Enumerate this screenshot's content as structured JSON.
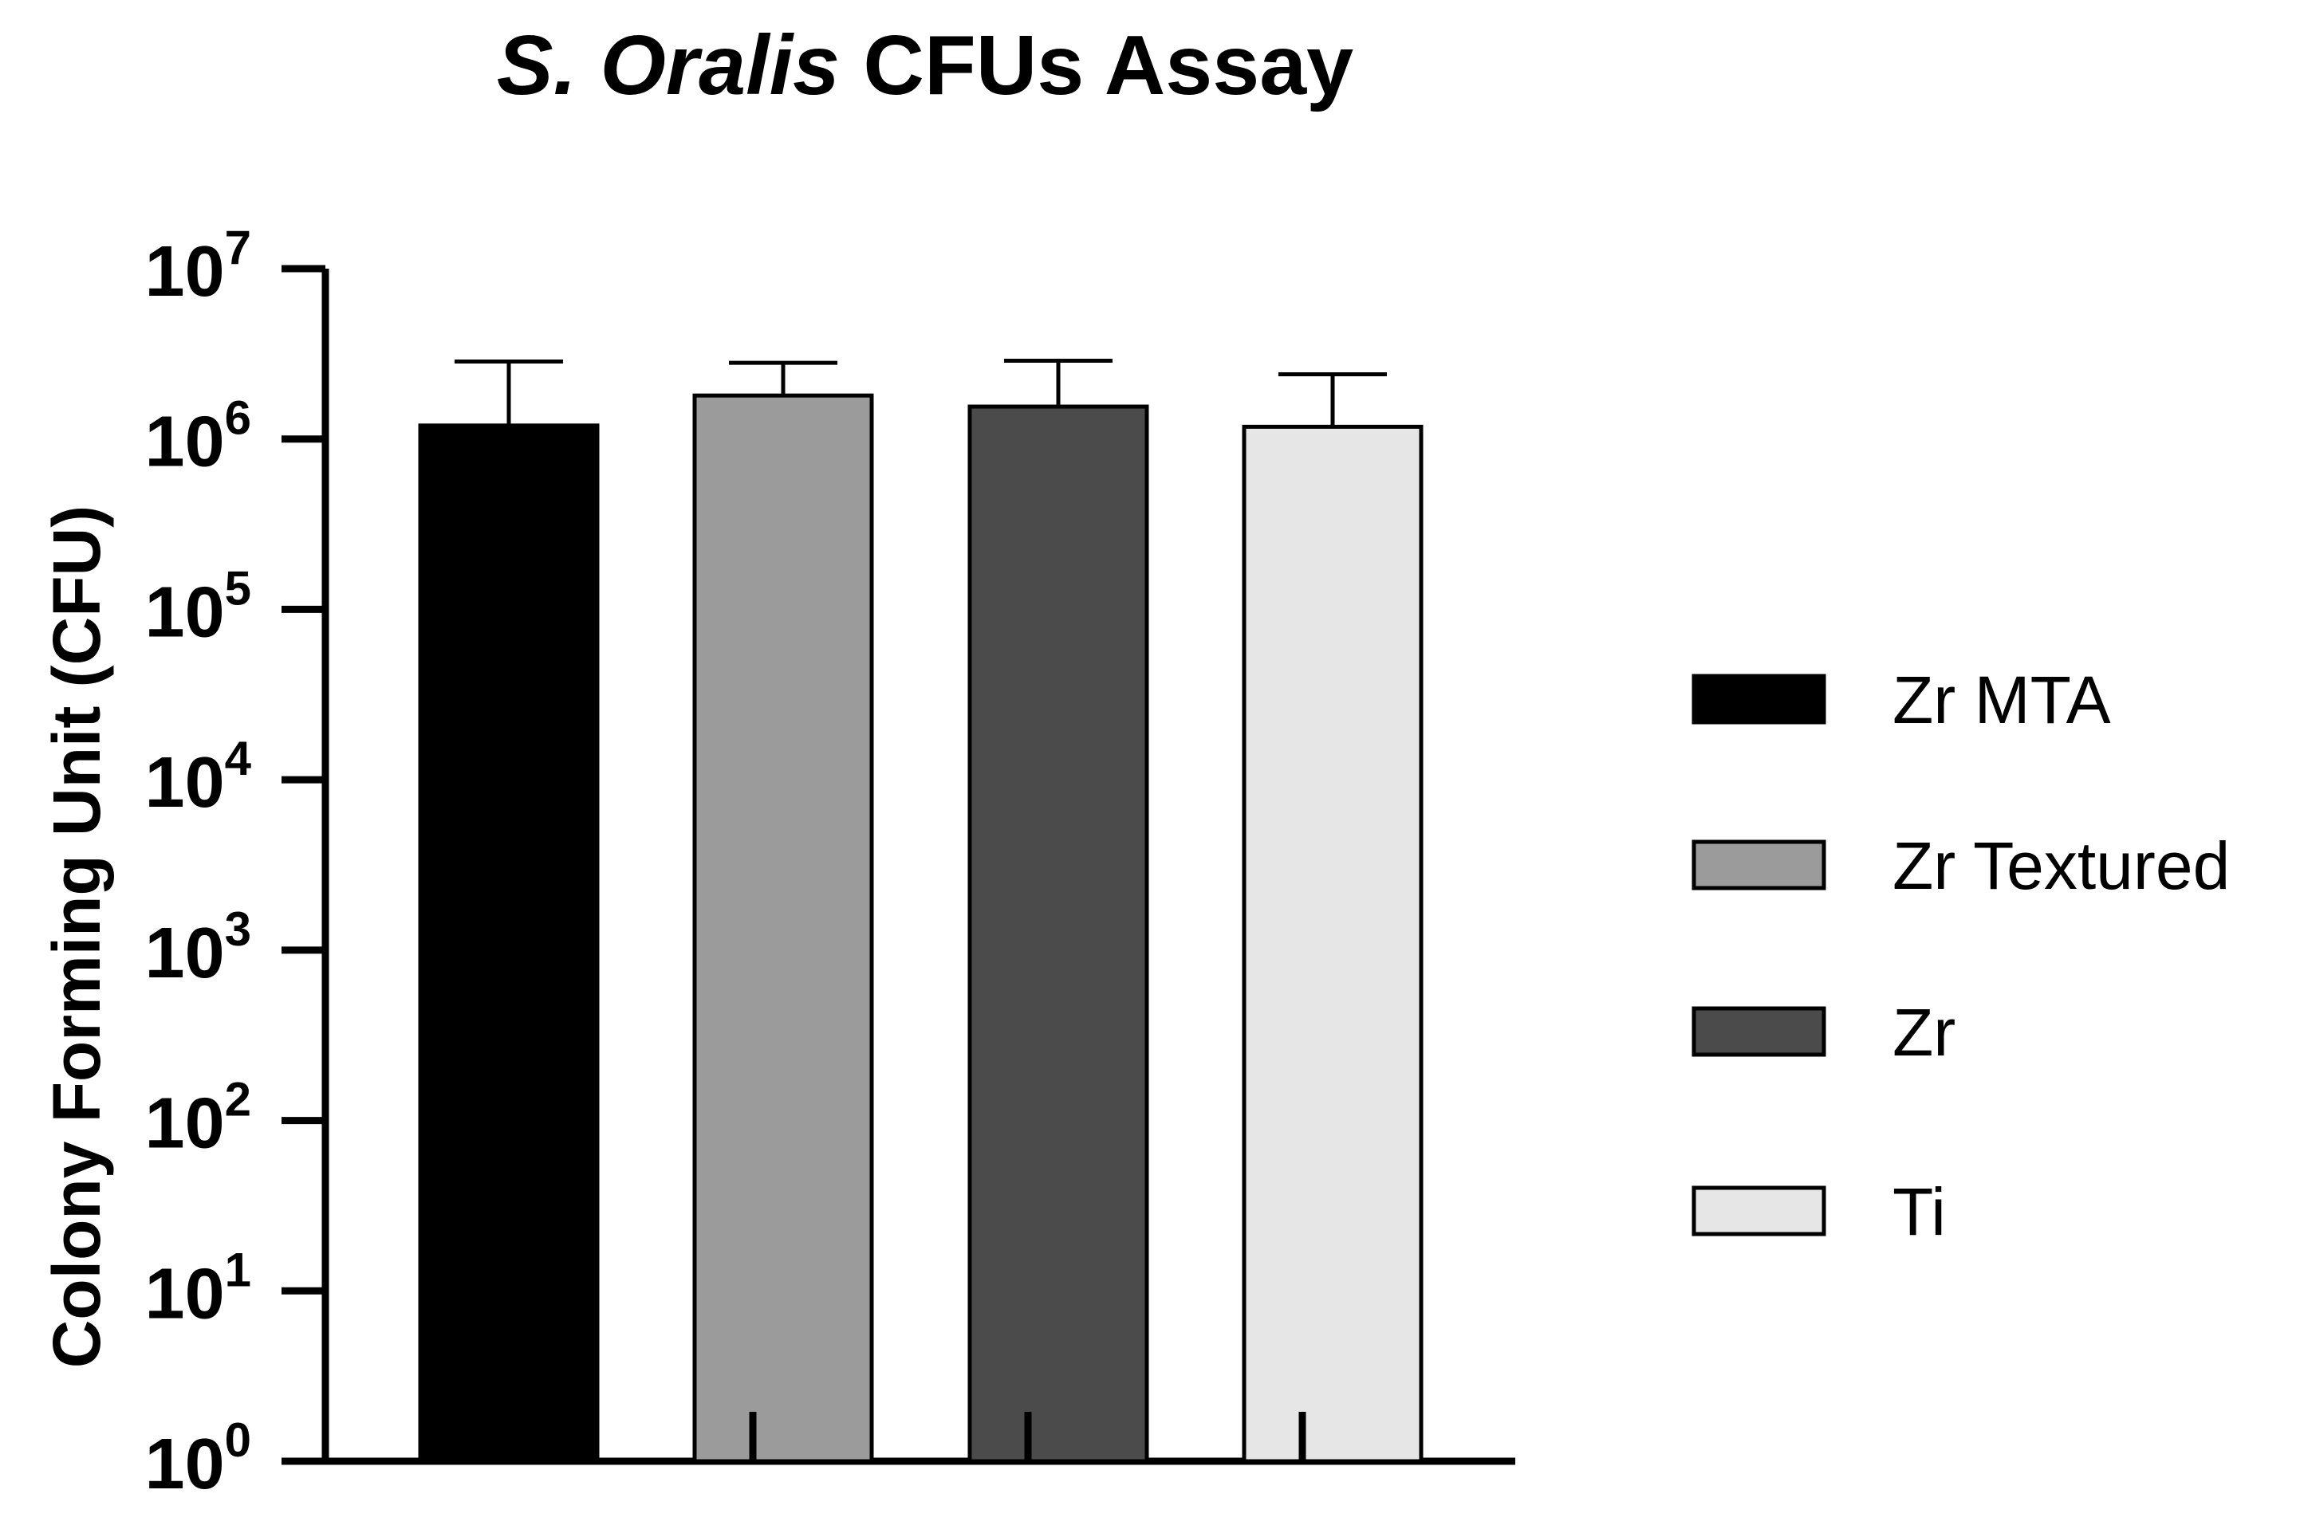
{
  "chart_data": {
    "type": "bar",
    "title_italic": "S. Oralis",
    "title_rest": " CFUs Assay",
    "xlabel": "",
    "ylabel": "Colony Forming Unit (CFU)",
    "yscale": "log",
    "ylim": [
      1,
      10000000
    ],
    "yticks": [
      {
        "base": "10",
        "exp": "0",
        "value": 1
      },
      {
        "base": "10",
        "exp": "1",
        "value": 10
      },
      {
        "base": "10",
        "exp": "2",
        "value": 100
      },
      {
        "base": "10",
        "exp": "3",
        "value": 1000
      },
      {
        "base": "10",
        "exp": "4",
        "value": 10000
      },
      {
        "base": "10",
        "exp": "5",
        "value": 100000
      },
      {
        "base": "10",
        "exp": "6",
        "value": 1000000
      },
      {
        "base": "10",
        "exp": "7",
        "value": 10000000
      }
    ],
    "categories": [
      "Zr MTA",
      "Zr Textured",
      "Zr",
      "Ti"
    ],
    "values": [
      1200000,
      1800000,
      1550000,
      1180000
    ],
    "error_upper": [
      2850000,
      2800000,
      2880000,
      2400000
    ],
    "colors": [
      "#000000",
      "#9b9b9b",
      "#4b4b4b",
      "#e6e6e6"
    ],
    "legend": {
      "position": "right",
      "entries": [
        "Zr MTA",
        "Zr Textured",
        "Zr",
        "Ti"
      ]
    },
    "grid": false
  }
}
